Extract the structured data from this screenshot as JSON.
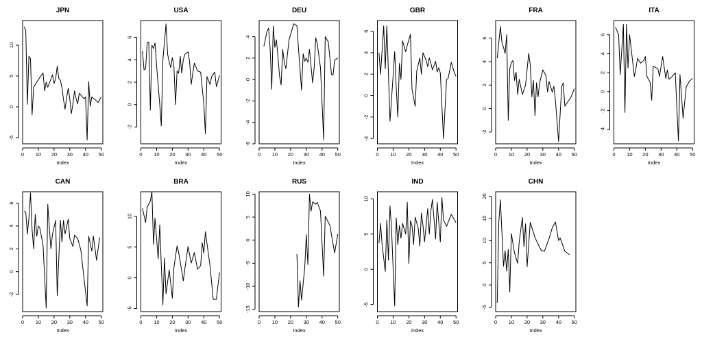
{
  "chart_data": [
    {
      "type": "line",
      "title": "JPN",
      "xlabel": "Index",
      "ylabel": "",
      "xlim": [
        0,
        51
      ],
      "ylim": [
        -6,
        14
      ],
      "xticks": [
        0,
        10,
        20,
        30,
        40,
        50
      ],
      "yticks": [
        -5,
        0,
        5,
        10
      ],
      "series": [
        {
          "values": [
            13,
            12.4,
            0.4,
            8.2,
            7.8,
            -1.3,
            3.2,
            4,
            4.8,
            5.5,
            2.6,
            4,
            3.2,
            4.5,
            5.2,
            3.8,
            4.6,
            6.6,
            4.6,
            4.3,
            3.1,
            1.2,
            -0.4,
            1.5,
            3,
            1.3,
            -1.1,
            0.5,
            2.6,
            1.3,
            0.5,
            2.2,
            1.6,
            1.3,
            1.6,
            -5.4,
            4.1,
            0.1,
            1.6,
            1.2,
            0.7,
            1.6
          ]
        }
      ],
      "x": [
        1,
        2,
        3,
        4,
        5,
        6,
        7,
        9,
        11,
        13,
        14,
        15,
        16,
        18,
        19,
        20,
        21,
        22,
        23,
        24,
        25,
        26,
        27,
        28,
        29,
        30,
        31,
        32,
        33,
        34,
        35,
        36,
        38,
        39,
        40,
        41,
        42,
        43,
        44,
        46,
        48,
        50
      ]
    },
    {
      "type": "line",
      "title": "USA",
      "xlabel": "Index",
      "ylabel": "",
      "xlim": [
        0,
        51
      ],
      "ylim": [
        -3.5,
        7.5
      ],
      "xticks": [
        0,
        10,
        20,
        30,
        40,
        50
      ],
      "yticks": [
        -2,
        0,
        2,
        4,
        6
      ],
      "series": [
        {
          "values": [
            4.8,
            3.1,
            3.2,
            5.5,
            5.6,
            -0.5,
            5.3,
            5,
            5.5,
            3.5,
            0,
            -1.9,
            4,
            7.2,
            4.5,
            3.8,
            3.3,
            4.2,
            3.4,
            0,
            3,
            2.8,
            4.3,
            2.8,
            4,
            4.5,
            4.7,
            3.8,
            1.8,
            2.8,
            3.7,
            3,
            2.9,
            0.1,
            -2.6,
            2.5,
            1.8,
            2.5,
            2.9,
            1.6,
            2.6
          ]
        }
      ],
      "x": [
        1,
        2,
        3,
        4,
        5,
        6,
        7,
        8,
        9,
        10,
        12,
        13,
        14,
        16,
        17,
        18,
        19,
        20,
        21,
        22,
        23,
        24,
        25,
        26,
        27,
        28,
        30,
        31,
        32,
        33,
        34,
        36,
        38,
        40,
        41,
        42,
        44,
        45,
        47,
        48,
        50
      ]
    },
    {
      "type": "line",
      "title": "DEU",
      "xlabel": "Index",
      "ylabel": "",
      "xlim": [
        0,
        51
      ],
      "ylim": [
        -6,
        5.5
      ],
      "xticks": [
        0,
        10,
        20,
        30,
        40,
        50
      ],
      "yticks": [
        -6,
        -4,
        -2,
        0,
        2,
        4
      ],
      "series": [
        {
          "values": [
            3.1,
            4.5,
            4.8,
            2.8,
            -0.9,
            5,
            3,
            3.7,
            2.1,
            0.3,
            -0.5,
            2.8,
            1.6,
            1,
            3.7,
            5.2,
            5,
            2.9,
            -1,
            2.4,
            1.7,
            2,
            1.6,
            2.8,
            -0.3,
            1.1,
            3.9,
            3.3,
            1.1,
            -5.6,
            4,
            3.5,
            0.5,
            0.4,
            1.8,
            2
          ]
        }
      ],
      "x": [
        3,
        5,
        6,
        7,
        8,
        9,
        10,
        11,
        12,
        13,
        14,
        15,
        16,
        17,
        19,
        22,
        24,
        25,
        27,
        28,
        29,
        30,
        31,
        32,
        34,
        35,
        36,
        37,
        39,
        41,
        42,
        44,
        46,
        47,
        48,
        50
      ]
    },
    {
      "type": "line",
      "title": "GBR",
      "xlabel": "Index",
      "ylabel": "",
      "xlim": [
        0,
        51
      ],
      "ylim": [
        -4.5,
        7
      ],
      "xticks": [
        0,
        10,
        20,
        30,
        40,
        50
      ],
      "yticks": [
        -4,
        -2,
        0,
        2,
        4,
        6
      ],
      "series": [
        {
          "values": [
            4,
            2,
            6.5,
            2.5,
            6.5,
            -2.4,
            1.8,
            4.1,
            0.7,
            -2,
            3,
            1.5,
            5.1,
            4.1,
            4.7,
            5.7,
            0.6,
            -1,
            2.3,
            3.5,
            2,
            4,
            3.3,
            2.7,
            3.5,
            3,
            2.4,
            3.2,
            2.2,
            2.6,
            2.1,
            -4,
            1.5,
            1.6,
            3.1,
            2.1,
            1.8
          ]
        }
      ],
      "x": [
        1,
        2,
        4,
        5,
        6,
        8,
        10,
        11,
        12,
        13,
        14,
        15,
        16,
        18,
        19,
        21,
        22,
        24,
        25,
        27,
        28,
        29,
        31,
        32,
        33,
        34,
        35,
        37,
        38,
        39,
        40,
        42,
        44,
        45,
        47,
        49,
        50
      ]
    },
    {
      "type": "line",
      "title": "FRA",
      "xlabel": "Index",
      "ylabel": "",
      "xlim": [
        0,
        51
      ],
      "ylim": [
        -3,
        7.5
      ],
      "xticks": [
        0,
        10,
        20,
        30,
        40,
        50
      ],
      "yticks": [
        -2,
        0,
        2,
        4,
        6
      ],
      "series": [
        {
          "values": [
            4.3,
            7,
            5.6,
            5.2,
            4.7,
            6.3,
            -1,
            3.4,
            3.9,
            4.1,
            2.4,
            3.1,
            1.2,
            2.5,
            1.2,
            2,
            4.7,
            3.7,
            1,
            2.4,
            -0.6,
            2.2,
            1,
            2.2,
            3.3,
            2.8,
            1.4,
            2.3,
            1.4,
            1.9,
            0.7,
            -2.8,
            1.9,
            2.2,
            0.2,
            1,
            1.7
          ]
        }
      ],
      "x": [
        1,
        3,
        4,
        5,
        6,
        7,
        8,
        9,
        10,
        11,
        12,
        13,
        14,
        15,
        17,
        19,
        21,
        22,
        23,
        24,
        25,
        26,
        27,
        28,
        30,
        32,
        33,
        34,
        36,
        37,
        38,
        40,
        42,
        43,
        44,
        48,
        50
      ]
    },
    {
      "type": "line",
      "title": "ITA",
      "xlabel": "Index",
      "ylabel": "",
      "xlim": [
        0,
        51
      ],
      "ylim": [
        -5.5,
        7.5
      ],
      "xticks": [
        0,
        10,
        20,
        30,
        40,
        50
      ],
      "yticks": [
        -4,
        -2,
        0,
        2,
        4,
        6
      ],
      "series": [
        {
          "values": [
            6.8,
            6,
            1.8,
            7.1,
            -2.2,
            7.1,
            2.5,
            6,
            1.6,
            2.4,
            3.5,
            3,
            3.3,
            3.7,
            1.6,
            1,
            -0.9,
            2.7,
            2.4,
            1.6,
            3.7,
            1.4,
            2.3,
            1.3,
            1.6,
            2,
            -5.2,
            1.8,
            -2.8,
            0.5,
            1.1,
            1.4
          ]
        }
      ],
      "x": [
        1,
        3,
        4,
        6,
        7,
        8,
        9,
        10,
        13,
        14,
        15,
        17,
        19,
        20,
        21,
        23,
        24,
        25,
        28,
        29,
        31,
        33,
        34,
        35,
        37,
        39,
        41,
        42,
        44,
        46,
        48,
        50
      ]
    },
    {
      "type": "line",
      "title": "CAN",
      "xlabel": "Index",
      "ylabel": "",
      "xlim": [
        0,
        51
      ],
      "ylim": [
        -3.5,
        7
      ],
      "xticks": [
        0,
        10,
        20,
        30,
        40,
        50
      ],
      "yticks": [
        -2,
        0,
        2,
        4,
        6
      ],
      "series": [
        {
          "values": [
            5.3,
            5.2,
            3.3,
            4.7,
            6.9,
            3.7,
            2,
            5,
            3.1,
            4,
            3.8,
            2.3,
            -3.2,
            5.9,
            3.8,
            2,
            3.3,
            4.5,
            -2.1,
            4.5,
            2.6,
            4.5,
            3.3,
            4.6,
            2.9,
            2.2,
            3.2,
            2.9,
            1.9,
            -3,
            3.1,
            1.8,
            3.1,
            1,
            3
          ]
        }
      ],
      "x": [
        1,
        2,
        3,
        4,
        5,
        6,
        7,
        8,
        9,
        10,
        11,
        13,
        15,
        16,
        17,
        18,
        19,
        21,
        22,
        24,
        25,
        26,
        27,
        29,
        30,
        32,
        33,
        35,
        37,
        41,
        42,
        44,
        45,
        47,
        49
      ]
    },
    {
      "type": "line",
      "title": "BRA",
      "xlabel": "Index",
      "ylabel": "",
      "xlim": [
        0,
        51
      ],
      "ylim": [
        -5.5,
        14
      ],
      "xticks": [
        0,
        10,
        20,
        30,
        40,
        50
      ],
      "yticks": [
        -5,
        0,
        5,
        10
      ],
      "series": [
        {
          "values": [
            11.3,
            9,
            11.5,
            12.5,
            14,
            5.4,
            9.7,
            3.1,
            8.6,
            -4.4,
            3.2,
            -2.6,
            1.3,
            -3.3,
            1.7,
            5.2,
            4.1,
            2.6,
            -0.5,
            1.5,
            5.1,
            2.4,
            4.1,
            1.4,
            2,
            5.7,
            4,
            7.5,
            1.9,
            -3.5,
            -3.5,
            0.9
          ]
        }
      ],
      "x": [
        1,
        3,
        4,
        6,
        7,
        8,
        9,
        11,
        12,
        14,
        15,
        16,
        18,
        20,
        21,
        23,
        24,
        25,
        27,
        28,
        30,
        32,
        34,
        36,
        38,
        39,
        40,
        41,
        44,
        46,
        48,
        50
      ]
    },
    {
      "type": "line",
      "title": "RUS",
      "xlabel": "Index",
      "ylabel": "",
      "xlim": [
        0,
        51
      ],
      "ylim": [
        -15.5,
        10.5
      ],
      "xticks": [
        0,
        10,
        20,
        30,
        40,
        50
      ],
      "yticks": [
        -15,
        -10,
        -5,
        0,
        5,
        10
      ],
      "series": [
        {
          "values": [
            -3,
            -14.5,
            -8.8,
            -13,
            -6,
            1.2,
            -5.3,
            10,
            6.3,
            8.3,
            7.8,
            8.2,
            6.3,
            -7.8,
            5.2,
            3.2,
            -2.8,
            1.3
          ]
        }
      ],
      "x": [
        24,
        25,
        26,
        27,
        29,
        30,
        31,
        32,
        33,
        34,
        36,
        37,
        39,
        41,
        42,
        45,
        48,
        50
      ]
    },
    {
      "type": "line",
      "title": "IND",
      "xlabel": "Index",
      "ylabel": "",
      "xlim": [
        0,
        51
      ],
      "ylim": [
        -6,
        11
      ],
      "xticks": [
        0,
        10,
        20,
        30,
        40,
        50
      ],
      "yticks": [
        -5,
        0,
        5,
        10
      ],
      "series": [
        {
          "values": [
            3.7,
            6.5,
            3.5,
            -0.3,
            7,
            1.3,
            9,
            5.8,
            -5.2,
            7.3,
            3.5,
            6.2,
            4.4,
            6.5,
            5,
            9.5,
            0.8,
            6.9,
            6.2,
            3.5,
            7.4,
            5.8,
            3.3,
            8,
            6.2,
            3.9,
            8.6,
            5,
            8.3,
            9.9,
            4.3,
            9.5,
            3.9,
            10.2,
            7,
            6.1,
            7.8,
            6.6
          ]
        }
      ],
      "x": [
        1,
        2,
        3,
        5,
        6,
        7,
        8,
        9,
        11,
        12,
        13,
        14,
        15,
        16,
        18,
        19,
        20,
        21,
        22,
        23,
        24,
        26,
        27,
        28,
        29,
        30,
        32,
        33,
        34,
        35,
        37,
        38,
        40,
        41,
        42,
        44,
        47,
        50
      ]
    },
    {
      "type": "line",
      "title": "CHN",
      "xlabel": "Index",
      "ylabel": "",
      "xlim": [
        0,
        51
      ],
      "ylim": [
        -6,
        21
      ],
      "xticks": [
        0,
        10,
        20,
        30,
        40,
        50
      ],
      "yticks": [
        -5,
        0,
        5,
        10,
        15,
        20
      ],
      "series": [
        {
          "values": [
            -4,
            14.2,
            19.2,
            4.2,
            7.7,
            3.1,
            8,
            -1.6,
            11.6,
            7.2,
            4.9,
            9.8,
            15.2,
            8.6,
            13.8,
            4.1,
            14.1,
            10.7,
            9.2,
            7.8,
            7.6,
            10.5,
            12.9,
            14.2,
            10,
            10.6,
            7.6,
            6.8
          ]
        }
      ],
      "x": [
        1,
        2,
        3,
        5,
        6,
        7,
        8,
        9,
        10,
        12,
        14,
        15,
        17,
        18,
        19,
        20,
        22,
        25,
        27,
        29,
        31,
        34,
        36,
        38,
        40,
        41,
        44,
        47
      ]
    }
  ]
}
